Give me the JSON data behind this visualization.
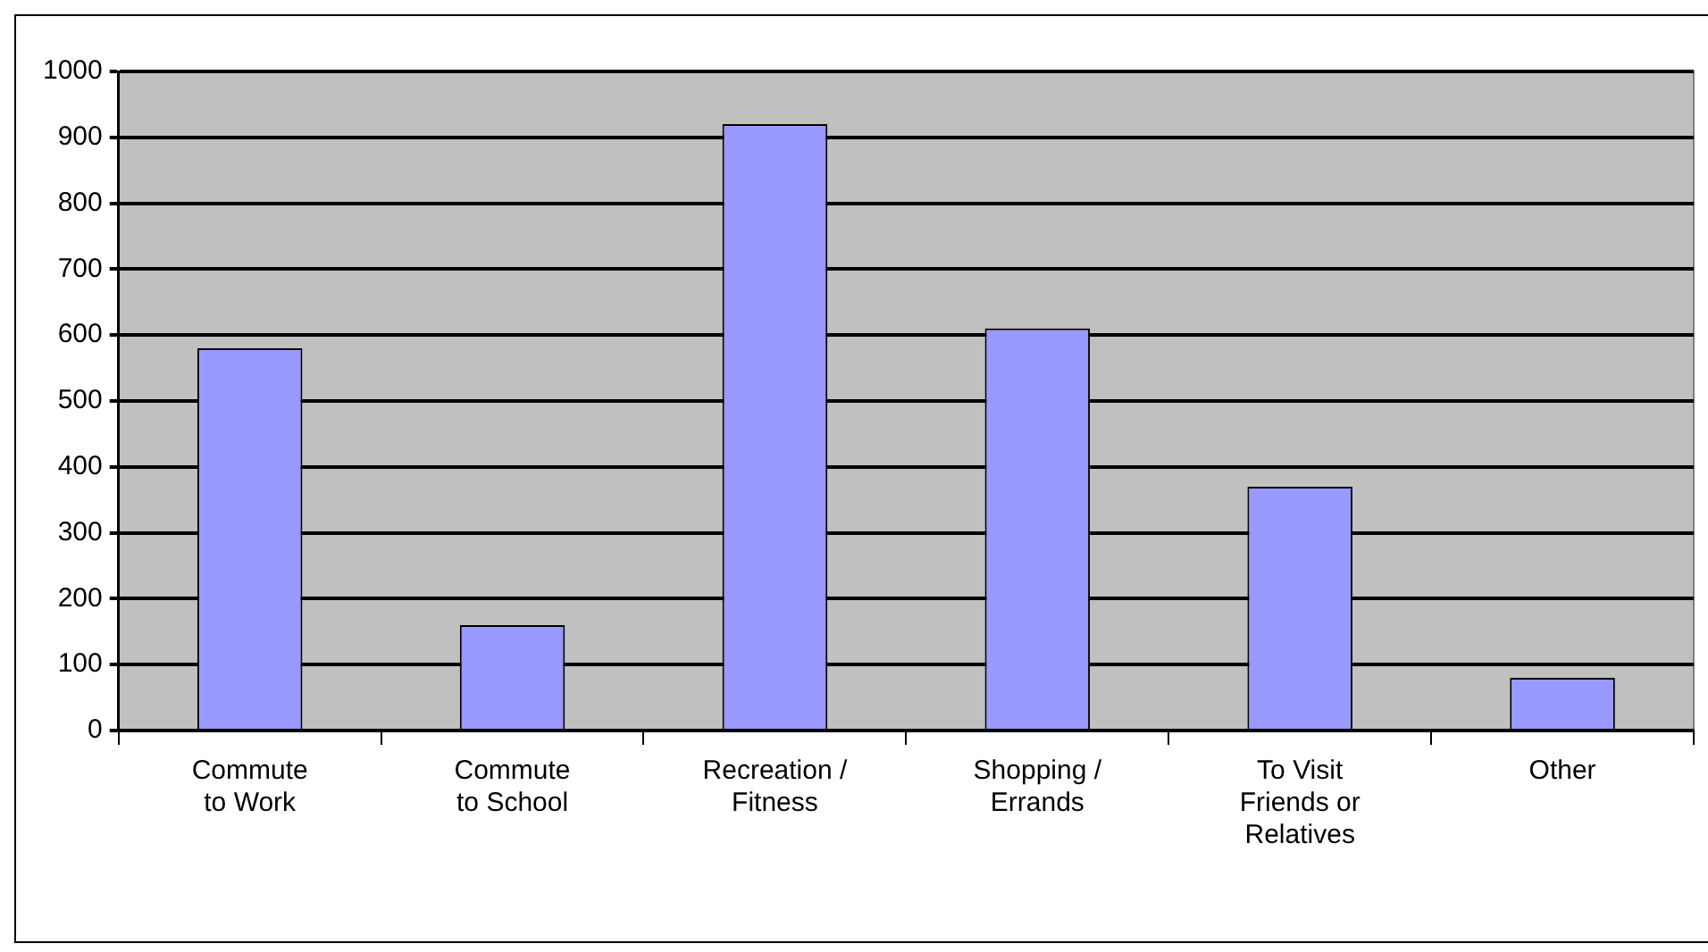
{
  "chart_data": {
    "type": "bar",
    "categories": [
      "Commute\nto Work",
      "Commute\nto School",
      "Recreation /\nFitness",
      "Shopping /\nErrands",
      "To Visit\nFriends or\nRelatives",
      "Other"
    ],
    "values": [
      580,
      160,
      920,
      610,
      370,
      80
    ],
    "color": "#9999ff",
    "ylim": [
      0,
      1000
    ],
    "yticks": [
      0,
      100,
      200,
      300,
      400,
      500,
      600,
      700,
      800,
      900,
      1000
    ],
    "grid": "y",
    "legend": false
  }
}
